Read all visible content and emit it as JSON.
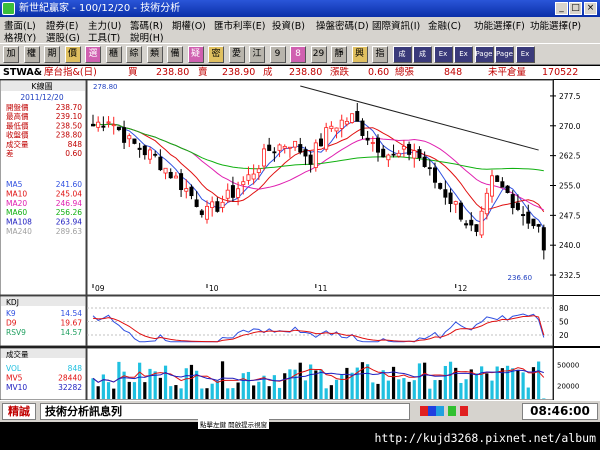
{
  "window": {
    "title": "新世紀贏家 - 100/12/20 - 技術分析"
  },
  "menu": {
    "row1": [
      "畫面(L)",
      "證券(E)",
      "主力(U)",
      "籌碼(R)",
      "期權(O)",
      "匯市利率(E)",
      "投資(B)",
      "操盤密碼(D)",
      "國際資訊(I)",
      "金融(C)",
      "功能選擇(F)",
      "功能選擇(P)"
    ],
    "row2": [
      "格視(Y)",
      "選股(G)",
      "工具(T)",
      "說明(H)"
    ]
  },
  "toolbar": {
    "buttons": [
      "加",
      "權",
      "期",
      "價",
      "選",
      "櫃",
      "綜",
      "類",
      "備",
      "疑",
      "密",
      "愛",
      "江",
      "9",
      "8",
      "29",
      "靜",
      "興",
      "指",
      "成",
      "成",
      "Ex",
      "Ex",
      "Page",
      "Page",
      "Ex"
    ]
  },
  "info": {
    "symbol": "STWA&",
    "name": "摩台指&(日)",
    "buy_label": "買",
    "buy": "238.80",
    "sell_label": "賣",
    "sell": "238.90",
    "trade_label": "成",
    "trade": "238.80",
    "change_label": "漲跌",
    "change": "0.60",
    "volume_label": "總張",
    "volume": "848",
    "oi_label": "未平倉量",
    "oi": "170522"
  },
  "left_panel": {
    "title": "K線圖",
    "date": "2011/12/20",
    "quote_rows": [
      {
        "label": "開盤價",
        "value": "238.70"
      },
      {
        "label": "最高價",
        "value": "239.10"
      },
      {
        "label": "最低價",
        "value": "238.50"
      },
      {
        "label": "收盤價",
        "value": "238.80"
      },
      {
        "label": "成交量",
        "value": "848"
      },
      {
        "label": "差",
        "value": "0.60"
      }
    ],
    "ma_rows": [
      {
        "label": "MA5",
        "value": "241.60",
        "color": "#3050e0"
      },
      {
        "label": "MA10",
        "value": "245.04",
        "color": "#e01010"
      },
      {
        "label": "MA20",
        "value": "246.94",
        "color": "#e020b0"
      },
      {
        "label": "MA60",
        "value": "256.26",
        "color": "#10b010"
      },
      {
        "label": "MA108",
        "value": "263.94",
        "color": "#2020c0"
      },
      {
        "label": "MA240",
        "value": "289.63",
        "color": "#a0a0a0"
      }
    ],
    "kd_title": "KDJ",
    "kd_rows": [
      {
        "label": "K9",
        "value": "14.54",
        "color": "#3050e0"
      },
      {
        "label": "D9",
        "value": "19.67",
        "color": "#e01010"
      },
      {
        "label": "RSV9",
        "value": "14.57",
        "color": "#20a060"
      }
    ],
    "vol_title": "成交量",
    "vol_rows": [
      {
        "label": "VOL",
        "value": "848",
        "color": "#20c0e0"
      },
      {
        "label": "MV5",
        "value": "28440",
        "color": "#e01010"
      },
      {
        "label": "MV10",
        "value": "32282",
        "color": "#2020c0"
      }
    ]
  },
  "price_axis": {
    "ticks": [
      "277.5",
      "270.0",
      "262.5",
      "255.0",
      "247.5",
      "240.0",
      "232.5"
    ],
    "high_label": "278.80",
    "low_label": "236.60"
  },
  "kd_axis": {
    "ticks": [
      "80",
      "50",
      "20"
    ]
  },
  "vol_axis": {
    "ticks": [
      "50000",
      "20000"
    ]
  },
  "x_labels": [
    "09",
    "10",
    "11",
    "12"
  ],
  "chart_data": {
    "type": "candlestick",
    "title": "K線圖",
    "x_labels": [
      "09",
      "10",
      "11",
      "12"
    ],
    "ylim": [
      230,
      281
    ],
    "high": 278.8,
    "low": 236.6,
    "last_close": 238.8,
    "series": [
      {
        "name": "MA5",
        "value": 241.6
      },
      {
        "name": "MA10",
        "value": 245.04
      },
      {
        "name": "MA20",
        "value": 246.94
      },
      {
        "name": "MA60",
        "value": 256.26
      },
      {
        "name": "MA108",
        "value": 263.94
      },
      {
        "name": "MA240",
        "value": 289.63
      }
    ],
    "kd": {
      "K9": 14.54,
      "D9": 19.67,
      "RSV9": 14.57,
      "ylim": [
        0,
        100
      ]
    },
    "volume": {
      "VOL": 848,
      "MV5": 28440,
      "MV10": 32282
    }
  },
  "status": {
    "left_label": "精誠",
    "center_label": "技術分析訊息列",
    "clock": "08:46:00",
    "hint": "點擊左鍵 開啟提示視窗"
  },
  "footer": {
    "url": "http://kujd3268.pixnet.net/album"
  },
  "colors": {
    "up": "#ff2020",
    "down": "#000000",
    "flat": "#000000"
  }
}
